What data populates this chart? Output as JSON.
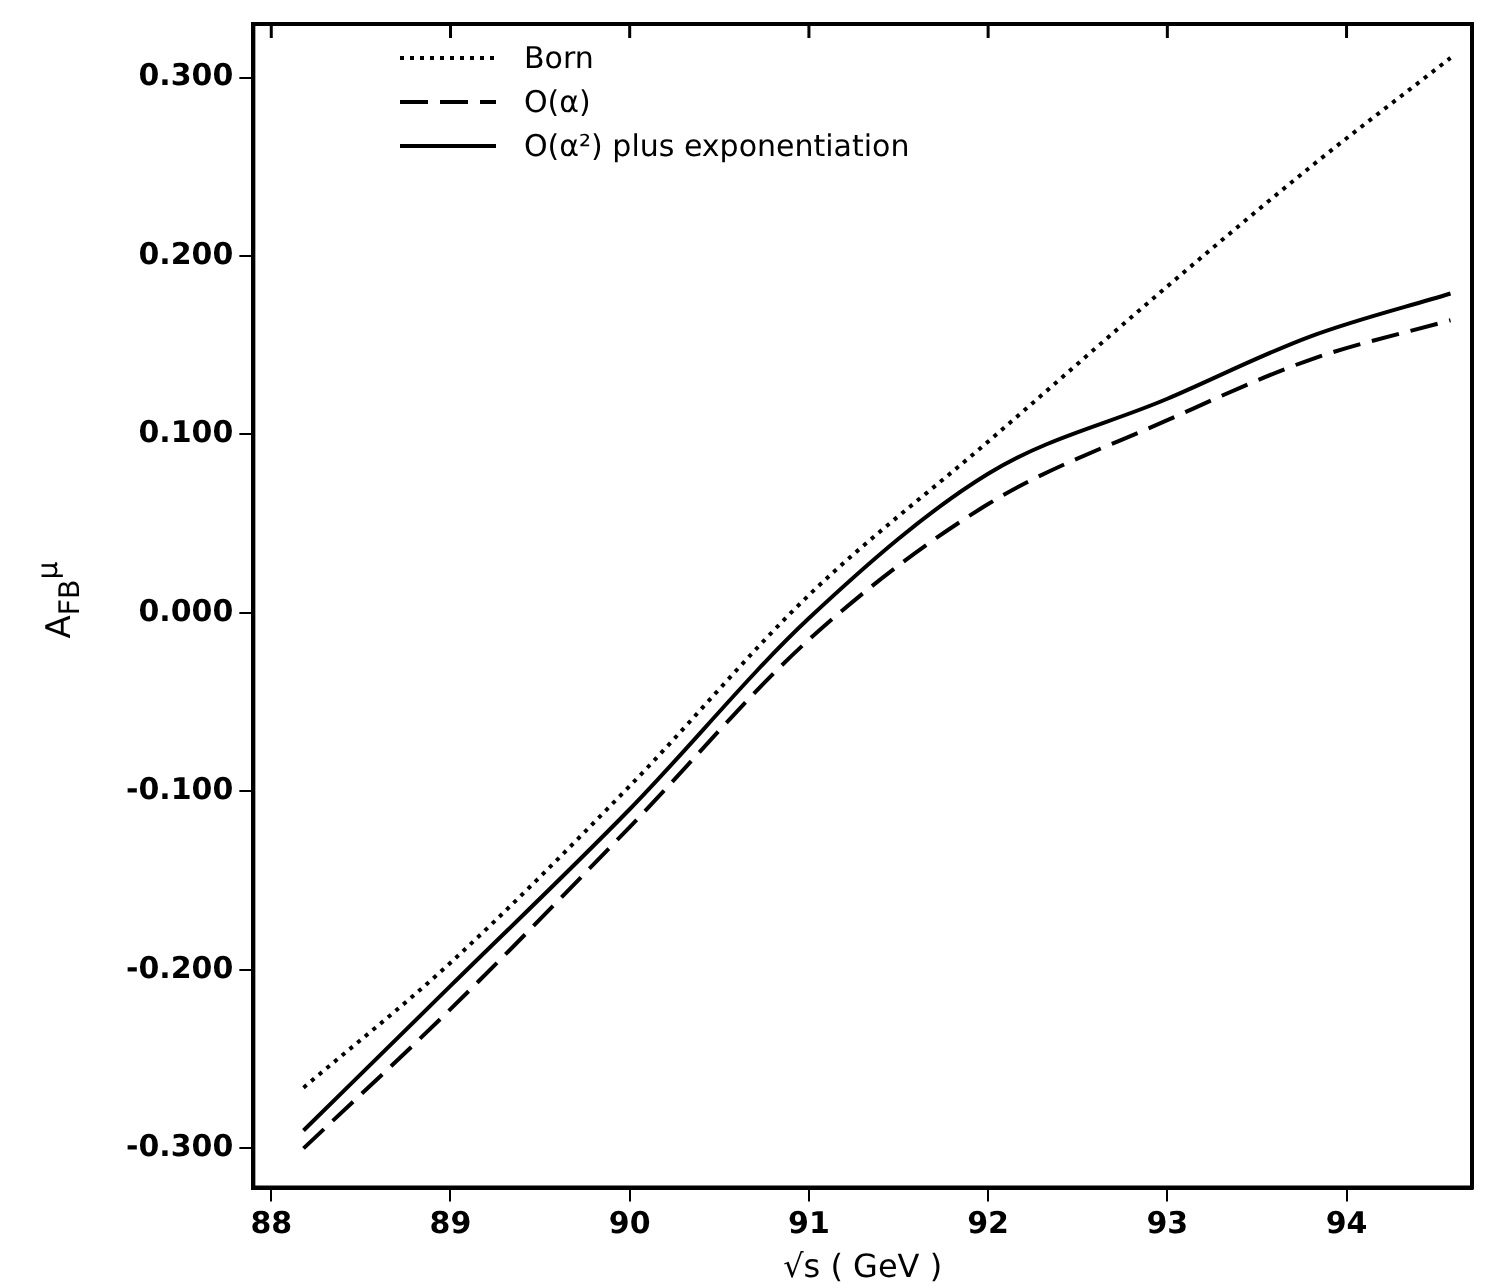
{
  "chart_data": {
    "type": "line",
    "xlabel": "√s ( GeV )",
    "ylabel": "A$_{FB}$$^{μ}$",
    "xlim": [
      87.9,
      94.7
    ],
    "xticks": [
      88,
      89,
      90,
      91,
      92,
      93,
      94
    ],
    "ylim": [
      -0.322,
      0.33
    ],
    "yticks": [
      {
        "value": -0.3,
        "label": "-0.300"
      },
      {
        "value": -0.2,
        "label": "-0.200"
      },
      {
        "value": -0.1,
        "label": "-0.100"
      },
      {
        "value": 0,
        "label": "0.000"
      },
      {
        "value": 0.1,
        "label": "0.100"
      },
      {
        "value": 0.2,
        "label": "0.200"
      },
      {
        "value": 0.3,
        "label": "0.300"
      }
    ],
    "grid": false,
    "legend": "top left",
    "marker": "none",
    "series": [
      {
        "name": "Born",
        "color": "#000000",
        "line_style": "dotted",
        "x": [
          88.18,
          89,
          90,
          91,
          92,
          93,
          93.8,
          94.58
        ],
        "values": [
          -0.266,
          -0.196,
          -0.097,
          0.01,
          0.096,
          0.183,
          0.25,
          0.311
        ]
      },
      {
        "name": "O(α)",
        "color": "#000000",
        "line_style": "dashed",
        "x": [
          88.18,
          89,
          90,
          91,
          92,
          93,
          93.8,
          94.58
        ],
        "values": [
          -0.3,
          -0.222,
          -0.12,
          -0.015,
          0.061,
          0.108,
          0.142,
          0.164
        ]
      },
      {
        "name": "O(α²) plus exponentiation",
        "color": "#000000",
        "line_style": "solid",
        "x": [
          88.18,
          89,
          90,
          91,
          92,
          93,
          93.8,
          94.58
        ],
        "values": [
          -0.29,
          -0.209,
          -0.11,
          -0.003,
          0.078,
          0.12,
          0.155,
          0.179
        ]
      }
    ]
  }
}
